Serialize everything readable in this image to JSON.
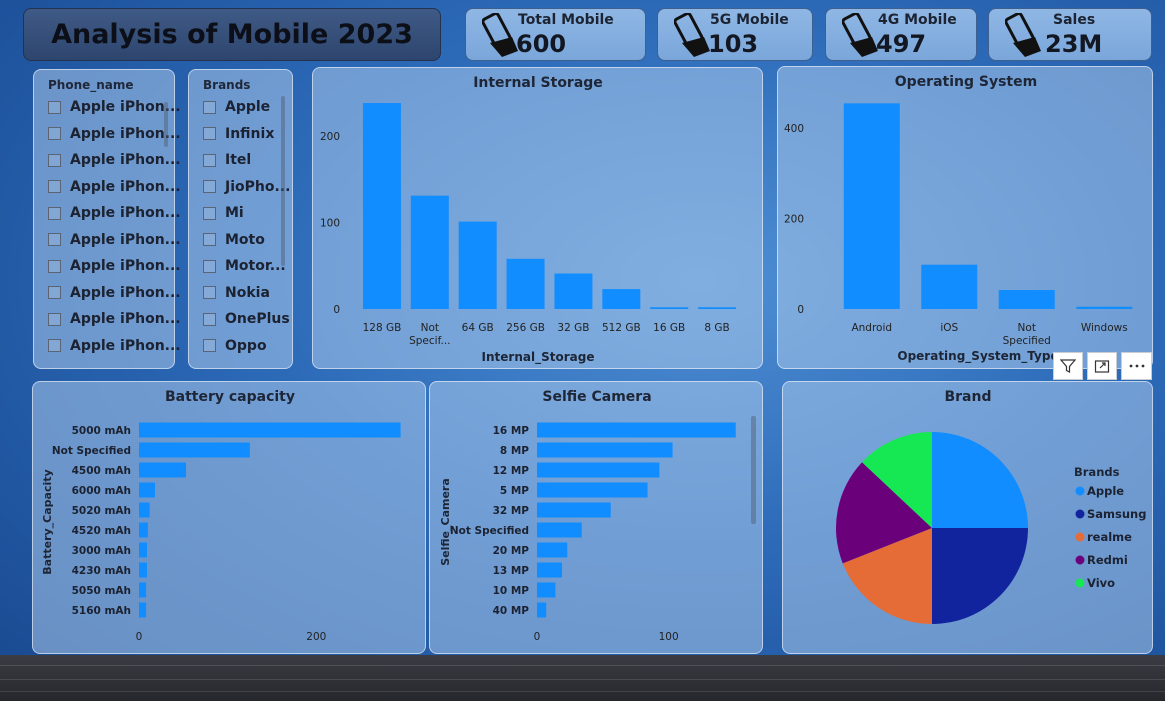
{
  "title": "Analysis of Mobile 2023",
  "kpis": [
    {
      "label": "Total Mobile",
      "value": "600",
      "icon": "phone-in-hand-icon"
    },
    {
      "label": "5G Mobile",
      "value": "103",
      "icon": "phone-in-hand-icon"
    },
    {
      "label": "4G Mobile",
      "value": "497",
      "icon": "phone-in-hand-icon"
    },
    {
      "label": "Sales",
      "value": "23M",
      "icon": "phone-in-hand-icon"
    }
  ],
  "phone_slicer": {
    "header": "Phone_name",
    "items": [
      "Apple iPhon...",
      "Apple iPhon...",
      "Apple iPhon...",
      "Apple iPhon...",
      "Apple iPhon...",
      "Apple iPhon...",
      "Apple iPhon...",
      "Apple iPhon...",
      "Apple iPhon...",
      "Apple iPhon..."
    ]
  },
  "brand_slicer": {
    "header": "Brands",
    "items": [
      "Apple",
      "Infinix",
      "Itel",
      "JioPho...",
      "Mi",
      "Moto",
      "Motor...",
      "Nokia",
      "OnePlus",
      "Oppo"
    ]
  },
  "visual_tools": {
    "filter": "filter-icon",
    "focus": "focus-mode-icon",
    "more": "more-options-icon"
  },
  "colors": {
    "bar": "#118dff",
    "pie": [
      "#118dff",
      "#12239e",
      "#e66c37",
      "#6b007b",
      "#16e854"
    ]
  },
  "chart_data": [
    {
      "type": "bar",
      "title": "Internal Storage",
      "xlabel": "Internal_Storage",
      "ylabel": "",
      "categories": [
        "128 GB",
        "Not Specif...",
        "64 GB",
        "256 GB",
        "32 GB",
        "512 GB",
        "16 GB",
        "8 GB"
      ],
      "values": [
        238,
        131,
        101,
        58,
        41,
        23,
        2,
        2
      ],
      "ylim": [
        0,
        260
      ],
      "yticks": [
        0,
        100,
        200
      ]
    },
    {
      "type": "bar",
      "title": "Operating System",
      "xlabel": "Operating_System_Type",
      "ylabel": "",
      "categories": [
        "Android",
        "iOS",
        "Not Specified",
        "Windows"
      ],
      "values": [
        455,
        98,
        42,
        5
      ],
      "ylim": [
        0,
        500
      ],
      "yticks": [
        0,
        200,
        400
      ]
    },
    {
      "type": "bar",
      "orientation": "horizontal",
      "title": "Battery capacity",
      "xlabel": "",
      "ylabel": "Battery_Capacity",
      "categories": [
        "5000 mAh",
        "Not Specified",
        "4500 mAh",
        "6000 mAh",
        "5020 mAh",
        "4520 mAh",
        "3000 mAh",
        "4230 mAh",
        "5050 mAh",
        "5160 mAh"
      ],
      "values": [
        295,
        125,
        53,
        18,
        12,
        10,
        9,
        9,
        8,
        8
      ],
      "xlim": [
        0,
        300
      ],
      "xticks": [
        0,
        200
      ]
    },
    {
      "type": "bar",
      "orientation": "horizontal",
      "title": "Selfie Camera",
      "xlabel": "",
      "ylabel": "Selfie_Camera",
      "categories": [
        "16 MP",
        "8 MP",
        "12 MP",
        "5 MP",
        "32 MP",
        "Not Specified",
        "20 MP",
        "13 MP",
        "10 MP",
        "40 MP"
      ],
      "values": [
        151,
        103,
        93,
        84,
        56,
        34,
        23,
        19,
        14,
        7
      ],
      "xlim": [
        0,
        155
      ],
      "xticks": [
        0,
        100
      ]
    },
    {
      "type": "pie",
      "title": "Brand",
      "legend_title": "Brands",
      "categories": [
        "Apple",
        "Samsung",
        "realme",
        "Redmi",
        "Vivo"
      ],
      "values": [
        25,
        25,
        19,
        18,
        13
      ]
    }
  ]
}
